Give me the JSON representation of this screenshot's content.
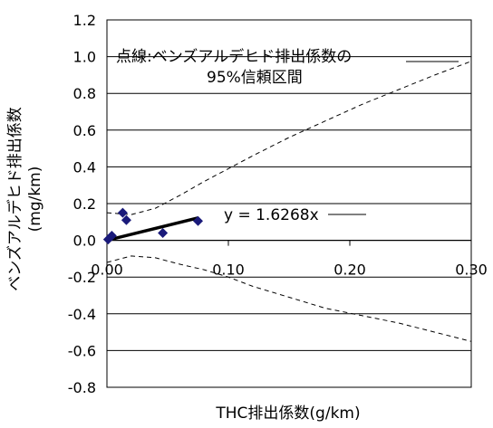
{
  "chart_data": {
    "type": "scatter",
    "xlabel": "THC排出係数(g/km)",
    "ylabel": "ベンズアルデヒド排出係数",
    "ylabel_unit": "(mg/km)",
    "xlim": [
      0,
      0.3
    ],
    "ylim": [
      -0.8,
      1.2
    ],
    "x_ticks": [
      0.0,
      0.1,
      0.2,
      0.3
    ],
    "x_tick_labels": [
      "0.00",
      "0.10",
      "0.20",
      "0.30"
    ],
    "y_ticks": [
      -0.8,
      -0.6,
      -0.4,
      -0.2,
      0.0,
      0.2,
      0.4,
      0.6,
      0.8,
      1.0,
      1.2
    ],
    "y_tick_labels": [
      "-0.8",
      "-0.6",
      "-0.4",
      "-0.2",
      "0.0",
      "0.2",
      "0.4",
      "0.6",
      "0.8",
      "1.0",
      "1.2"
    ],
    "grid": "horizontal",
    "points": [
      {
        "x": 0.001,
        "y": 0.005
      },
      {
        "x": 0.004,
        "y": 0.025
      },
      {
        "x": 0.013,
        "y": 0.15
      },
      {
        "x": 0.016,
        "y": 0.11
      },
      {
        "x": 0.046,
        "y": 0.04
      },
      {
        "x": 0.075,
        "y": 0.105
      }
    ],
    "point_color": "#1a1a7a",
    "regression": {
      "slope": 1.6268,
      "x_range": [
        0,
        0.075
      ],
      "label": "y = 1.6268x"
    },
    "ci_band": {
      "label_line1": "点線:ベンズアルデヒド排出係数の",
      "label_line2": "95%信頼区間",
      "upper": [
        [
          0,
          0.15
        ],
        [
          0.02,
          0.14
        ],
        [
          0.04,
          0.175
        ],
        [
          0.06,
          0.245
        ],
        [
          0.08,
          0.32
        ],
        [
          0.1,
          0.39
        ],
        [
          0.12,
          0.46
        ],
        [
          0.15,
          0.56
        ],
        [
          0.18,
          0.65
        ],
        [
          0.21,
          0.74
        ],
        [
          0.24,
          0.82
        ],
        [
          0.27,
          0.9
        ],
        [
          0.3,
          0.975
        ]
      ],
      "lower": [
        [
          0,
          -0.12
        ],
        [
          0.02,
          -0.085
        ],
        [
          0.04,
          -0.095
        ],
        [
          0.06,
          -0.13
        ],
        [
          0.08,
          -0.16
        ],
        [
          0.1,
          -0.2
        ],
        [
          0.12,
          -0.25
        ],
        [
          0.15,
          -0.31
        ],
        [
          0.18,
          -0.37
        ],
        [
          0.21,
          -0.41
        ],
        [
          0.24,
          -0.45
        ],
        [
          0.27,
          -0.5
        ],
        [
          0.3,
          -0.55
        ]
      ]
    }
  }
}
